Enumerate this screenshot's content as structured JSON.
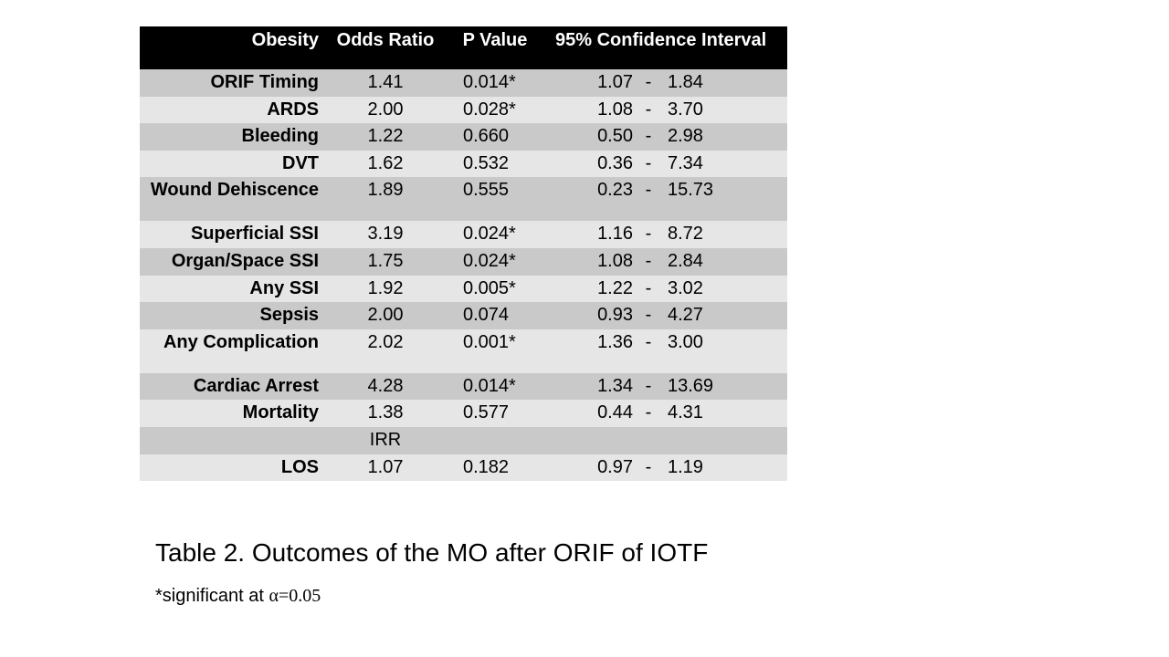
{
  "table": {
    "headers": {
      "label": "Obesity",
      "odds_ratio": "Odds Ratio",
      "p_value": "P Value",
      "ci": "95% Confidence Interval"
    },
    "rows": [
      {
        "label": "ORIF Timing",
        "or": "1.41",
        "p": "0.014*",
        "lo": "1.07",
        "dash": "-",
        "hi": "1.84"
      },
      {
        "label": "ARDS",
        "or": "2.00",
        "p": "0.028*",
        "lo": "1.08",
        "dash": "-",
        "hi": "3.70"
      },
      {
        "label": "Bleeding",
        "or": "1.22",
        "p": "0.660",
        "lo": "0.50",
        "dash": "-",
        "hi": "2.98"
      },
      {
        "label": "DVT",
        "or": "1.62",
        "p": "0.532",
        "lo": "0.36",
        "dash": "-",
        "hi": "7.34"
      },
      {
        "label": "Wound Dehiscence",
        "or": "1.89",
        "p": "0.555",
        "lo": "0.23",
        "dash": "-",
        "hi": "15.73"
      },
      {
        "label": "Superficial SSI",
        "or": "3.19",
        "p": "0.024*",
        "lo": "1.16",
        "dash": "-",
        "hi": "8.72"
      },
      {
        "label": "Organ/Space SSI",
        "or": "1.75",
        "p": "0.024*",
        "lo": "1.08",
        "dash": "-",
        "hi": "2.84"
      },
      {
        "label": "Any SSI",
        "or": "1.92",
        "p": "0.005*",
        "lo": "1.22",
        "dash": "-",
        "hi": "3.02"
      },
      {
        "label": "Sepsis",
        "or": "2.00",
        "p": "0.074",
        "lo": "0.93",
        "dash": "-",
        "hi": "4.27"
      },
      {
        "label": "Any Complication",
        "or": "2.02",
        "p": "0.001*",
        "lo": "1.36",
        "dash": "-",
        "hi": "3.00"
      },
      {
        "label": "Cardiac Arrest",
        "or": "4.28",
        "p": "0.014*",
        "lo": "1.34",
        "dash": "-",
        "hi": "13.69"
      },
      {
        "label": "Mortality",
        "or": "1.38",
        "p": "0.577",
        "lo": "0.44",
        "dash": "-",
        "hi": "4.31"
      },
      {
        "label": "",
        "or": "IRR",
        "p": "",
        "lo": "",
        "dash": "",
        "hi": ""
      },
      {
        "label": "LOS",
        "or": "1.07",
        "p": "0.182",
        "lo": "0.97",
        "dash": "-",
        "hi": "1.19"
      }
    ]
  },
  "caption": "Table 2. Outcomes of the MO after ORIF of IOTF",
  "footnote": {
    "prefix": "*significant at ",
    "alpha": "α=0.05"
  }
}
